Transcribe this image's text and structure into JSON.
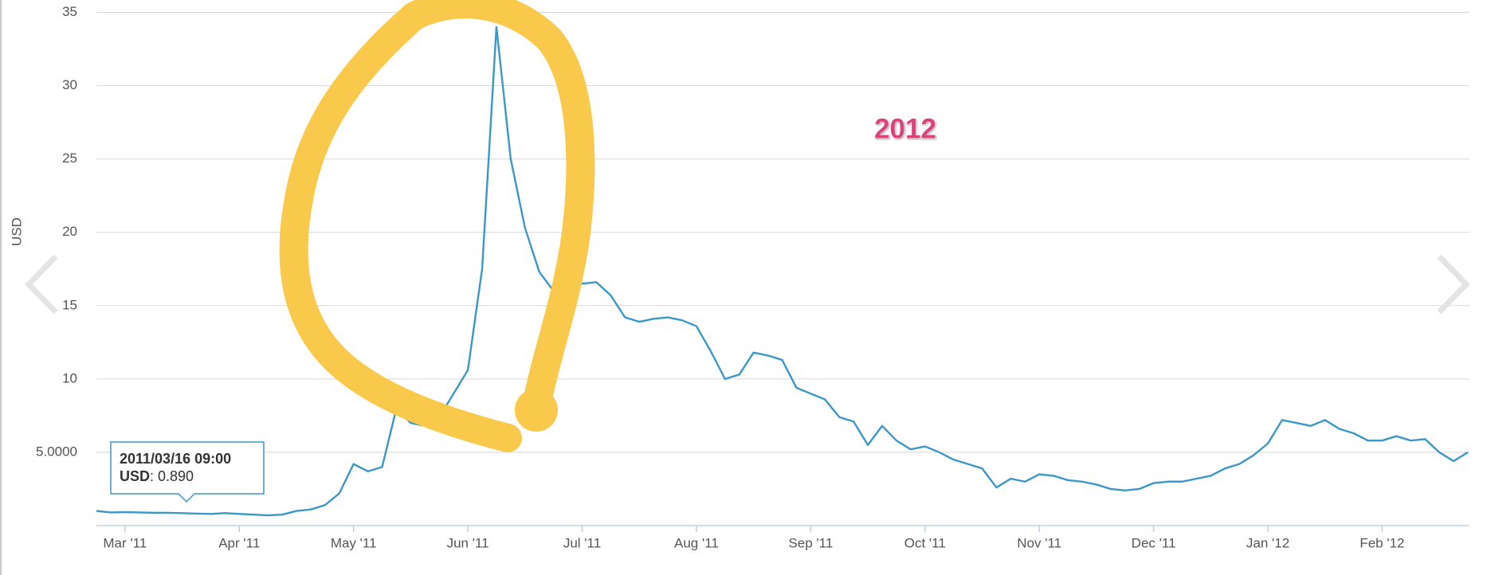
{
  "chart_data": {
    "type": "line",
    "y_label": "USD",
    "annotation": "2012",
    "tooltip": {
      "title": "2011/03/16 09:00",
      "value_text": ": 0.890"
    },
    "categories": [
      null,
      null,
      "Mar '11",
      null,
      null,
      null,
      null,
      null,
      null,
      null,
      "Apr '11",
      null,
      null,
      null,
      null,
      null,
      null,
      null,
      "May '11",
      null,
      null,
      null,
      null,
      null,
      null,
      null,
      "Jun '11",
      null,
      null,
      null,
      null,
      null,
      null,
      null,
      "Jul '11",
      null,
      null,
      null,
      null,
      null,
      null,
      null,
      "Aug '11",
      null,
      null,
      null,
      null,
      null,
      null,
      null,
      "Sep '11",
      null,
      null,
      null,
      null,
      null,
      null,
      null,
      "Oct '11",
      null,
      null,
      null,
      null,
      null,
      null,
      null,
      "Nov '11",
      null,
      null,
      null,
      null,
      null,
      null,
      null,
      "Dec '11",
      null,
      null,
      null,
      null,
      null,
      null,
      null,
      "Jan '12",
      null,
      null,
      null,
      null,
      null,
      null,
      null,
      "Feb '12",
      null,
      null,
      null,
      null,
      null,
      null
    ],
    "series": [
      {
        "name": "USD",
        "color": "#3a97c7",
        "values": [
          1.0,
          0.9,
          0.92,
          0.9,
          0.88,
          0.87,
          0.85,
          0.82,
          0.8,
          0.85,
          0.8,
          0.75,
          0.7,
          0.75,
          1.0,
          1.1,
          1.4,
          2.2,
          4.2,
          3.7,
          4.0,
          8.0,
          7.0,
          6.8,
          7.4,
          9.0,
          10.6,
          17.5,
          34.0,
          25.0,
          20.3,
          17.3,
          16.0,
          17.0,
          16.5,
          16.6,
          15.7,
          14.2,
          13.9,
          14.1,
          14.2,
          14.0,
          13.6,
          11.9,
          10.0,
          10.3,
          11.8,
          11.6,
          11.3,
          9.4,
          9.0,
          8.6,
          7.4,
          7.1,
          5.5,
          6.8,
          5.8,
          5.2,
          5.4,
          5.0,
          4.5,
          4.2,
          3.9,
          2.6,
          3.2,
          3.0,
          3.5,
          3.4,
          3.1,
          3.0,
          2.8,
          2.5,
          2.4,
          2.5,
          2.9,
          3.0,
          3.0,
          3.2,
          3.4,
          3.9,
          4.2,
          4.8,
          5.6,
          7.2,
          7.0,
          6.8,
          7.2,
          6.6,
          6.3,
          5.8,
          5.8,
          6.1,
          5.8,
          5.9,
          5.0,
          4.4,
          5.0
        ]
      }
    ],
    "ylim": [
      0,
      35
    ],
    "yticks": [
      {
        "value": 5,
        "label": "5.0000"
      },
      10,
      15,
      20,
      25,
      30,
      35
    ],
    "grid": true
  }
}
